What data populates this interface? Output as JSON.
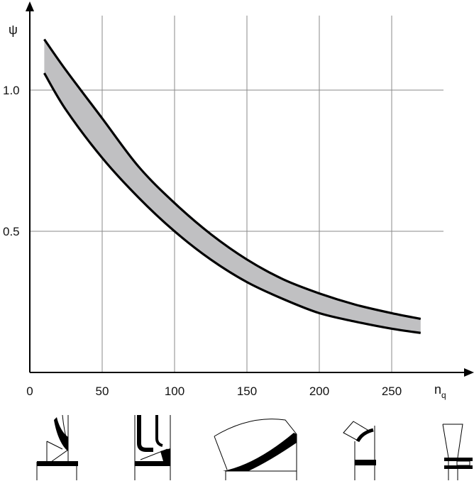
{
  "chart_data": {
    "type": "area",
    "title": "",
    "xlabel": "n",
    "xlabel_sub": "q",
    "ylabel": "ψ",
    "xlim": [
      0,
      300
    ],
    "ylim": [
      0,
      1.25
    ],
    "xticks": [
      {
        "value": 0,
        "label": "0"
      },
      {
        "value": 50,
        "label": "50"
      },
      {
        "value": 100,
        "label": "100"
      },
      {
        "value": 150,
        "label": "150"
      },
      {
        "value": 200,
        "label": "200"
      },
      {
        "value": 250,
        "label": "250"
      }
    ],
    "yticks": [
      {
        "value": 0.5,
        "label": "0.5"
      },
      {
        "value": 1.0,
        "label": "1.0"
      }
    ],
    "grid": true,
    "band_fill": "#c0c0c2",
    "line_color": "#000000",
    "series": [
      {
        "role": "upper",
        "x": [
          10,
          25,
          50,
          75,
          100,
          125,
          150,
          175,
          200,
          225,
          250,
          270
        ],
        "y": [
          1.18,
          1.07,
          0.9,
          0.73,
          0.6,
          0.49,
          0.4,
          0.33,
          0.28,
          0.24,
          0.21,
          0.19
        ]
      },
      {
        "role": "lower",
        "x": [
          10,
          25,
          50,
          75,
          100,
          125,
          150,
          175,
          200,
          225,
          250,
          270
        ],
        "y": [
          1.06,
          0.93,
          0.76,
          0.62,
          0.5,
          0.4,
          0.32,
          0.26,
          0.21,
          0.18,
          0.155,
          0.14
        ]
      }
    ]
  },
  "impeller_sketches": [
    {
      "name": "radial-impeller-low-nq"
    },
    {
      "name": "radial-impeller-medium-nq"
    },
    {
      "name": "mixed-flow-impeller"
    },
    {
      "name": "semi-axial-impeller"
    },
    {
      "name": "axial-propeller"
    }
  ]
}
